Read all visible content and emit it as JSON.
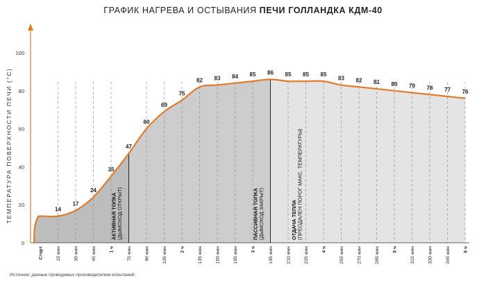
{
  "title": {
    "prefix": "ГРАФИК НАГРЕВА И ОСТЫВАНИЯ",
    "brand": "ПЕЧИ ГОЛЛАНДКА КДМ-40"
  },
  "source_note": "Источник: данные проводимых производителем испытаний.",
  "colors": {
    "line": "#E07B2A",
    "axis_arrow": "#E07B2A",
    "fill_active": "#BDBDBD",
    "fill_passive": "#CDCDCD",
    "fill_cooling": "#E4E4E4"
  },
  "chart_data": {
    "type": "area",
    "ylabel": "ТЕМПЕРАТУРА ПОВЕРХНОСТИ ПЕЧИ (°С)",
    "ylim": [
      0,
      100
    ],
    "yticks": [
      0,
      20,
      40,
      60,
      80,
      100
    ],
    "grid": "vertical dashed",
    "x_minutes": [
      0,
      15,
      30,
      45,
      60,
      75,
      90,
      105,
      120,
      135,
      150,
      165,
      180,
      195,
      210,
      225,
      240,
      255,
      270,
      285,
      300,
      315,
      330,
      345,
      360
    ],
    "tick_labels": [
      "Старт",
      "15 мин",
      "30 мин",
      "45 мин",
      "1 ч",
      "75 мин",
      "90 мин",
      "105 мин",
      "2 ч",
      "135 мин",
      "150 мин",
      "165 мин",
      "3 ч",
      "195 мин",
      "210 мин",
      "225 мин",
      "4 ч",
      "255 мин",
      "270 мин",
      "285 мин",
      "5 ч",
      "315 мин",
      "330 мин",
      "345 мин",
      "6 ч"
    ],
    "bold_ticks": [
      "Старт",
      "1 ч",
      "2 ч",
      "3 ч",
      "4 ч",
      "5 ч",
      "6 ч"
    ],
    "series": [
      {
        "values": [
          null,
          14,
          17,
          24,
          35,
          47,
          60,
          69,
          75,
          82,
          83,
          84,
          85,
          86,
          85,
          85,
          85,
          83,
          82,
          81,
          80,
          79,
          78,
          77,
          76
        ]
      }
    ],
    "phases": [
      {
        "title": "АКТИВНАЯ ТОПКА",
        "note": "(ДЫМОХОД ОТКРЫТ)",
        "end_minute": 75
      },
      {
        "title": "ПАССИВНАЯ ТОПКА",
        "note": "(ДЫМОХОД ЗАКРЫТ)",
        "end_minute": 195
      },
      {
        "title": "ОТДАЧА ТЕПЛА",
        "note": "(ПРЕОДАЛЕН ПОРОГ МАКС. ТЕМПЕРАТУРЫ)",
        "start_minute": 210
      }
    ]
  }
}
